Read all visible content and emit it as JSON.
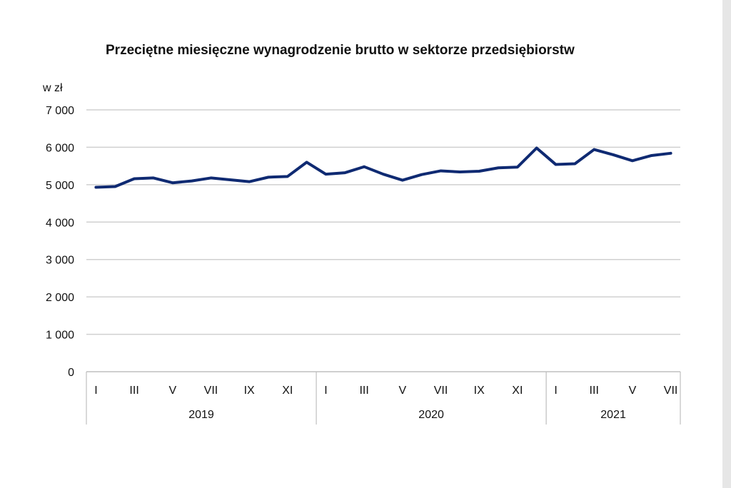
{
  "chart_data": {
    "type": "line",
    "title": "Przeciętne miesięczne wynagrodzenie brutto w sektorze przedsiębiorstw",
    "ylabel": "w zł",
    "xlabel": "",
    "ylim": [
      0,
      7000
    ],
    "yticks": [
      "0",
      "1 000",
      "2 000",
      "3 000",
      "4 000",
      "5 000",
      "6 000",
      "7 000"
    ],
    "grid": "horizontal",
    "line_color": "#0f2a72",
    "years": [
      {
        "label": "2019",
        "months": 12,
        "tick_labels": [
          "I",
          "III",
          "V",
          "VII",
          "IX",
          "XI"
        ]
      },
      {
        "label": "2020",
        "months": 12,
        "tick_labels": [
          "I",
          "III",
          "V",
          "VII",
          "IX",
          "XI"
        ]
      },
      {
        "label": "2021",
        "months": 7,
        "tick_labels": [
          "I",
          "III",
          "V",
          "VII"
        ]
      }
    ],
    "series": [
      {
        "values": [
          4930,
          4950,
          5160,
          5180,
          5050,
          5100,
          5180,
          5130,
          5080,
          5200,
          5220,
          5600,
          5280,
          5320,
          5480,
          5280,
          5120,
          5270,
          5370,
          5340,
          5360,
          5450,
          5470,
          5980,
          5540,
          5560,
          5940,
          5800,
          5640,
          5780,
          5840
        ]
      }
    ]
  }
}
